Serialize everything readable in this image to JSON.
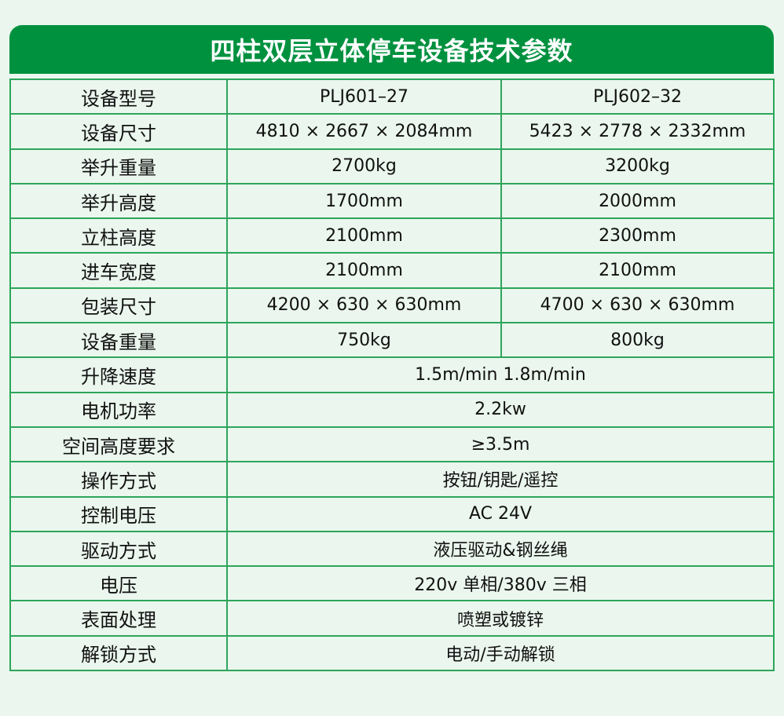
{
  "title": "四柱双层立体停车设备技术参数",
  "colors": {
    "header": "#00913f",
    "border": "#2ea55a",
    "background": "#eaf6ee"
  },
  "rows": [
    {
      "label": "设备型号",
      "values": [
        "PLJ601–27",
        "PLJ602–32"
      ]
    },
    {
      "label": "设备尺寸",
      "values": [
        "4810 × 2667 × 2084mm",
        "5423 × 2778 × 2332mm"
      ]
    },
    {
      "label": "举升重量",
      "values": [
        "2700kg",
        "3200kg"
      ]
    },
    {
      "label": "举升高度",
      "values": [
        "1700mm",
        "2000mm"
      ]
    },
    {
      "label": "立柱高度",
      "values": [
        "2100mm",
        "2300mm"
      ]
    },
    {
      "label": "进车宽度",
      "values": [
        "2100mm",
        "2100mm"
      ]
    },
    {
      "label": "包装尺寸",
      "values": [
        "4200 × 630 × 630mm",
        "4700 × 630 × 630mm"
      ]
    },
    {
      "label": "设备重量",
      "values": [
        "750kg",
        "800kg"
      ]
    },
    {
      "label": "升降速度",
      "values": [
        "1.5m/min  1.8m/min"
      ]
    },
    {
      "label": "电机功率",
      "values": [
        "2.2kw"
      ]
    },
    {
      "label": "空间高度要求",
      "values": [
        "≥3.5m"
      ]
    },
    {
      "label": "操作方式",
      "values": [
        "按钮/钥匙/遥控"
      ]
    },
    {
      "label": "控制电压",
      "values": [
        "AC 24V"
      ]
    },
    {
      "label": "驱动方式",
      "values": [
        "液压驱动&钢丝绳"
      ]
    },
    {
      "label": "电压",
      "values": [
        "220v 单相/380v 三相"
      ]
    },
    {
      "label": "表面处理",
      "values": [
        "喷塑或镀锌"
      ]
    },
    {
      "label": "解锁方式",
      "values": [
        "电动/手动解锁"
      ]
    }
  ]
}
